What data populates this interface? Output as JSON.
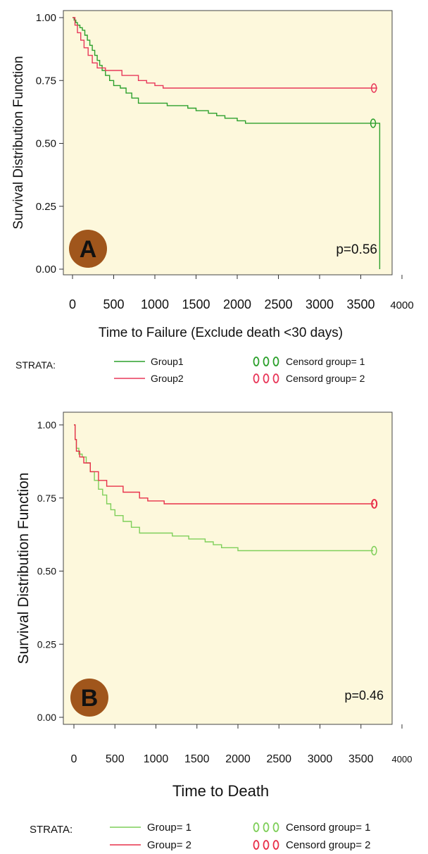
{
  "chart_data": [
    {
      "type": "line",
      "panel_letter": "A",
      "xlabel": "Time to Failure (Exclude death <30 days)",
      "ylabel": "Survival Distribution Function",
      "xlim": [
        0,
        4000
      ],
      "ylim": [
        0,
        1
      ],
      "x_ticks": [
        "0",
        "500",
        "1000",
        "1500",
        "2000",
        "2500",
        "3000",
        "3500",
        "4000"
      ],
      "y_ticks": [
        "0.00",
        "0.25",
        "0.50",
        "0.75",
        "1.00"
      ],
      "annotation": "p=0.56",
      "legend_title": "STRATA:",
      "series": [
        {
          "name": "Group1",
          "color": "#2ca02c",
          "points": [
            [
              0,
              1.0
            ],
            [
              20,
              0.99
            ],
            [
              40,
              0.98
            ],
            [
              60,
              0.97
            ],
            [
              90,
              0.96
            ],
            [
              120,
              0.95
            ],
            [
              150,
              0.93
            ],
            [
              180,
              0.91
            ],
            [
              210,
              0.89
            ],
            [
              240,
              0.87
            ],
            [
              270,
              0.85
            ],
            [
              300,
              0.83
            ],
            [
              330,
              0.81
            ],
            [
              360,
              0.79
            ],
            [
              400,
              0.77
            ],
            [
              450,
              0.75
            ],
            [
              500,
              0.73
            ],
            [
              580,
              0.72
            ],
            [
              650,
              0.7
            ],
            [
              720,
              0.68
            ],
            [
              800,
              0.66
            ],
            [
              1100,
              0.66
            ],
            [
              1150,
              0.65
            ],
            [
              1400,
              0.64
            ],
            [
              1500,
              0.63
            ],
            [
              1650,
              0.62
            ],
            [
              1750,
              0.61
            ],
            [
              1850,
              0.6
            ],
            [
              2000,
              0.59
            ],
            [
              2100,
              0.58
            ],
            [
              3600,
              0.58
            ],
            [
              3730,
              0.57
            ],
            [
              3730,
              0.0
            ]
          ],
          "censored_x": [
            3650
          ]
        },
        {
          "name": "Group2",
          "color": "#e8385a",
          "points": [
            [
              0,
              1.0
            ],
            [
              30,
              0.97
            ],
            [
              60,
              0.94
            ],
            [
              100,
              0.91
            ],
            [
              140,
              0.88
            ],
            [
              190,
              0.85
            ],
            [
              240,
              0.82
            ],
            [
              300,
              0.8
            ],
            [
              400,
              0.79
            ],
            [
              600,
              0.77
            ],
            [
              800,
              0.75
            ],
            [
              900,
              0.74
            ],
            [
              1000,
              0.73
            ],
            [
              1100,
              0.72
            ],
            [
              3700,
              0.72
            ]
          ],
          "censored_x": [
            3660
          ]
        }
      ],
      "censor_legend": [
        {
          "label": "Censord group= 1",
          "color": "#2ca02c"
        },
        {
          "label": "Censord group= 2",
          "color": "#e8385a"
        }
      ]
    },
    {
      "type": "line",
      "panel_letter": "B",
      "xlabel": "Time to Death",
      "ylabel": "Survival Distribution Function",
      "xlim": [
        0,
        4000
      ],
      "ylim": [
        0,
        1
      ],
      "x_ticks": [
        "0",
        "500",
        "1000",
        "1500",
        "2000",
        "2500",
        "3000",
        "3500",
        "4000"
      ],
      "y_ticks": [
        "0.00",
        "0.25",
        "0.50",
        "0.75",
        "1.00"
      ],
      "annotation": "p=0.46",
      "legend_title": "STRATA:",
      "series": [
        {
          "name": "Group= 1",
          "color": "#7fcf5a",
          "points": [
            [
              0,
              1.0
            ],
            [
              15,
              0.95
            ],
            [
              30,
              0.92
            ],
            [
              60,
              0.9
            ],
            [
              100,
              0.89
            ],
            [
              150,
              0.87
            ],
            [
              200,
              0.84
            ],
            [
              250,
              0.81
            ],
            [
              300,
              0.78
            ],
            [
              350,
              0.76
            ],
            [
              400,
              0.73
            ],
            [
              450,
              0.71
            ],
            [
              500,
              0.69
            ],
            [
              600,
              0.67
            ],
            [
              700,
              0.65
            ],
            [
              800,
              0.63
            ],
            [
              1100,
              0.63
            ],
            [
              1200,
              0.62
            ],
            [
              1400,
              0.61
            ],
            [
              1600,
              0.6
            ],
            [
              1700,
              0.59
            ],
            [
              1800,
              0.58
            ],
            [
              2000,
              0.57
            ],
            [
              3650,
              0.57
            ]
          ],
          "censored_x": [
            3660
          ]
        },
        {
          "name": "Group= 2",
          "color": "#e8304a",
          "points": [
            [
              0,
              1.0
            ],
            [
              15,
              0.95
            ],
            [
              30,
              0.91
            ],
            [
              70,
              0.89
            ],
            [
              120,
              0.87
            ],
            [
              200,
              0.84
            ],
            [
              300,
              0.81
            ],
            [
              400,
              0.79
            ],
            [
              600,
              0.77
            ],
            [
              800,
              0.75
            ],
            [
              900,
              0.74
            ],
            [
              1100,
              0.73
            ],
            [
              3660,
              0.73
            ]
          ],
          "censored_x": [
            3660,
            3665
          ]
        }
      ],
      "censor_legend": [
        {
          "label": "Censord group= 1",
          "color": "#7fcf5a"
        },
        {
          "label": "Censord group= 2",
          "color": "#e8304a"
        }
      ]
    }
  ]
}
